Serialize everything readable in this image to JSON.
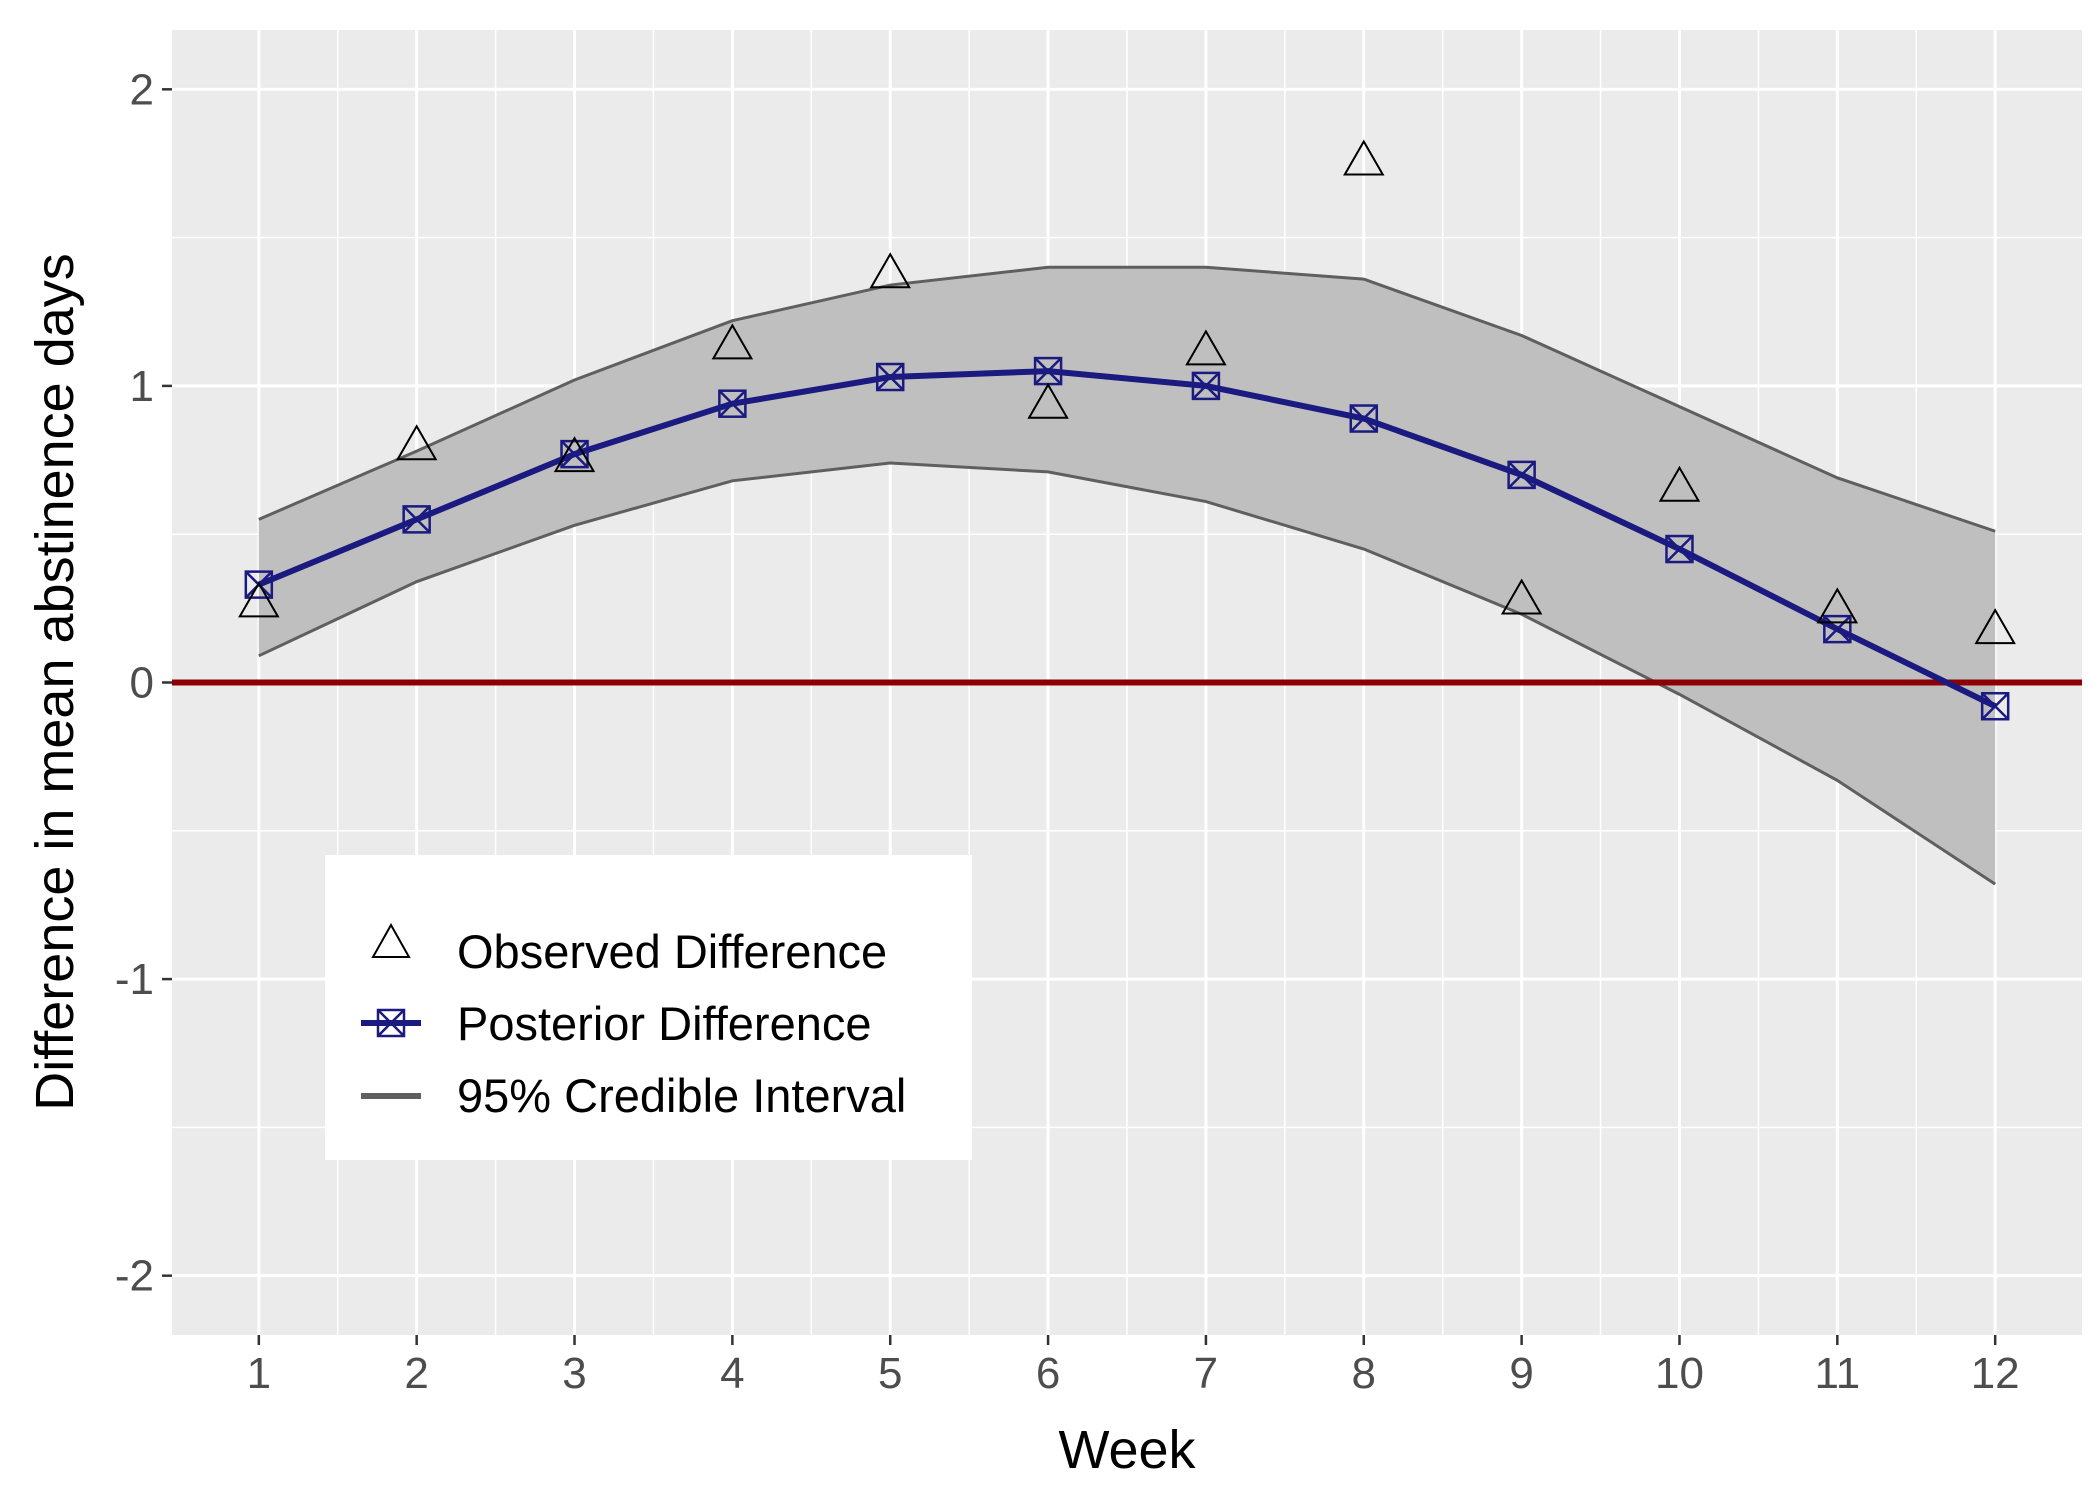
{
  "chart_data": {
    "type": "line",
    "xlabel": "Week",
    "ylabel": "Difference in mean abstinence days",
    "x": [
      1,
      2,
      3,
      4,
      5,
      6,
      7,
      8,
      9,
      10,
      11,
      12
    ],
    "xlim": [
      0.45,
      12.55
    ],
    "ylim": [
      -2.2,
      2.2
    ],
    "x_ticks": [
      "1",
      "2",
      "3",
      "4",
      "5",
      "6",
      "7",
      "8",
      "9",
      "10",
      "11",
      "12"
    ],
    "y_ticks": [
      "-2",
      "-1",
      "0",
      "1",
      "2"
    ],
    "y_tick_values": [
      -2,
      -1,
      0,
      1,
      2
    ],
    "grid": true,
    "legend_position": "bottom-left",
    "series": [
      {
        "name": "Observed Difference",
        "marker": "triangle-open",
        "values": [
          0.27,
          0.8,
          0.76,
          1.14,
          1.38,
          0.94,
          1.12,
          1.76,
          0.28,
          0.66,
          0.25,
          0.18
        ]
      },
      {
        "name": "Posterior Difference",
        "marker": "square-cross",
        "line": true,
        "values": [
          0.33,
          0.55,
          0.77,
          0.94,
          1.03,
          1.05,
          1.0,
          0.89,
          0.7,
          0.45,
          0.18,
          -0.08
        ]
      },
      {
        "name": "95% Credible Interval",
        "band": true,
        "upper": [
          0.55,
          0.78,
          1.02,
          1.22,
          1.34,
          1.4,
          1.4,
          1.36,
          1.17,
          0.93,
          0.69,
          0.51
        ],
        "lower": [
          0.09,
          0.34,
          0.53,
          0.68,
          0.74,
          0.71,
          0.61,
          0.45,
          0.23,
          -0.04,
          -0.33,
          -0.68
        ]
      }
    ],
    "reference_line": {
      "y": 0
    },
    "legend": {
      "observed": "Observed Difference",
      "posterior": "Posterior Difference",
      "interval": "95% Credible Interval"
    },
    "colors": {
      "panel": "#ebebeb",
      "grid": "#ffffff",
      "posterior": "#1a1a80",
      "band_fill": "#bfbfbf",
      "band_edge": "#5f5f5f",
      "reference": "#8b0000",
      "observed": "#000000"
    }
  }
}
